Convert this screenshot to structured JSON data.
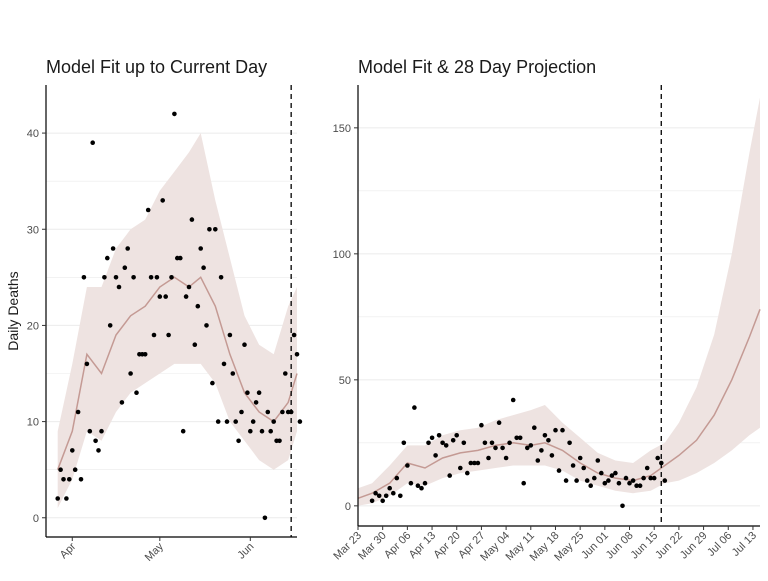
{
  "colors": {
    "ribbon": "#eee3e1",
    "line": "#c49a94",
    "points": "#000000",
    "gridline": "#ebebeb",
    "axis": "#000000",
    "cutoff": "#000000"
  },
  "chart_data": [
    {
      "type": "scatter",
      "title": "Model Fit up to Current Day",
      "ylabel": "Daily Deaths",
      "xlabel": "",
      "x_is_date": true,
      "xlim": [
        "2020-03-23",
        "2020-06-17"
      ],
      "ylim": [
        -2,
        45
      ],
      "yticks": [
        0,
        10,
        20,
        30,
        40
      ],
      "xticks": [
        {
          "date": "2020-04-01",
          "label": "Apr"
        },
        {
          "date": "2020-05-01",
          "label": "May"
        },
        {
          "date": "2020-06-01",
          "label": "Jun"
        }
      ],
      "cutoff_date": "2020-06-15",
      "observed": [
        [
          "2020-03-27",
          2
        ],
        [
          "2020-03-28",
          5
        ],
        [
          "2020-03-29",
          4
        ],
        [
          "2020-03-30",
          2
        ],
        [
          "2020-03-31",
          4
        ],
        [
          "2020-04-01",
          7
        ],
        [
          "2020-04-02",
          5
        ],
        [
          "2020-04-03",
          11
        ],
        [
          "2020-04-04",
          4
        ],
        [
          "2020-04-05",
          25
        ],
        [
          "2020-04-06",
          16
        ],
        [
          "2020-04-07",
          9
        ],
        [
          "2020-04-08",
          39
        ],
        [
          "2020-04-09",
          8
        ],
        [
          "2020-04-10",
          7
        ],
        [
          "2020-04-11",
          9
        ],
        [
          "2020-04-12",
          25
        ],
        [
          "2020-04-13",
          27
        ],
        [
          "2020-04-14",
          20
        ],
        [
          "2020-04-15",
          28
        ],
        [
          "2020-04-16",
          25
        ],
        [
          "2020-04-17",
          24
        ],
        [
          "2020-04-18",
          12
        ],
        [
          "2020-04-19",
          26
        ],
        [
          "2020-04-20",
          28
        ],
        [
          "2020-04-21",
          15
        ],
        [
          "2020-04-22",
          25
        ],
        [
          "2020-04-23",
          13
        ],
        [
          "2020-04-24",
          17
        ],
        [
          "2020-04-25",
          17
        ],
        [
          "2020-04-26",
          17
        ],
        [
          "2020-04-27",
          32
        ],
        [
          "2020-04-28",
          25
        ],
        [
          "2020-04-29",
          19
        ],
        [
          "2020-04-30",
          25
        ],
        [
          "2020-05-01",
          23
        ],
        [
          "2020-05-02",
          33
        ],
        [
          "2020-05-03",
          23
        ],
        [
          "2020-05-04",
          19
        ],
        [
          "2020-05-05",
          25
        ],
        [
          "2020-05-06",
          42
        ],
        [
          "2020-05-07",
          27
        ],
        [
          "2020-05-08",
          27
        ],
        [
          "2020-05-09",
          9
        ],
        [
          "2020-05-10",
          23
        ],
        [
          "2020-05-11",
          24
        ],
        [
          "2020-05-12",
          31
        ],
        [
          "2020-05-13",
          18
        ],
        [
          "2020-05-14",
          22
        ],
        [
          "2020-05-15",
          28
        ],
        [
          "2020-05-16",
          26
        ],
        [
          "2020-05-17",
          20
        ],
        [
          "2020-05-18",
          30
        ],
        [
          "2020-05-19",
          14
        ],
        [
          "2020-05-20",
          30
        ],
        [
          "2020-05-21",
          10
        ],
        [
          "2020-05-22",
          25
        ],
        [
          "2020-05-23",
          16
        ],
        [
          "2020-05-24",
          10
        ],
        [
          "2020-05-25",
          19
        ],
        [
          "2020-05-26",
          15
        ],
        [
          "2020-05-27",
          10
        ],
        [
          "2020-05-28",
          8
        ],
        [
          "2020-05-29",
          11
        ],
        [
          "2020-05-30",
          18
        ],
        [
          "2020-05-31",
          13
        ],
        [
          "2020-06-01",
          9
        ],
        [
          "2020-06-02",
          10
        ],
        [
          "2020-06-03",
          12
        ],
        [
          "2020-06-04",
          13
        ],
        [
          "2020-06-05",
          9
        ],
        [
          "2020-06-06",
          0
        ],
        [
          "2020-06-07",
          11
        ],
        [
          "2020-06-08",
          9
        ],
        [
          "2020-06-09",
          10
        ],
        [
          "2020-06-10",
          8
        ],
        [
          "2020-06-11",
          8
        ],
        [
          "2020-06-12",
          11
        ],
        [
          "2020-06-13",
          15
        ],
        [
          "2020-06-14",
          11
        ],
        [
          "2020-06-15",
          11
        ],
        [
          "2020-06-16",
          19
        ],
        [
          "2020-06-17",
          17
        ],
        [
          "2020-06-18",
          10
        ]
      ],
      "fit": [
        {
          "date": "2020-03-27",
          "mid": 5,
          "lo": 1,
          "hi": 9
        },
        {
          "date": "2020-04-01",
          "mid": 9,
          "lo": 4,
          "hi": 16
        },
        {
          "date": "2020-04-06",
          "mid": 17,
          "lo": 9,
          "hi": 24
        },
        {
          "date": "2020-04-11",
          "mid": 15,
          "lo": 8,
          "hi": 24
        },
        {
          "date": "2020-04-16",
          "mid": 19,
          "lo": 11,
          "hi": 28
        },
        {
          "date": "2020-04-21",
          "mid": 21,
          "lo": 13,
          "hi": 30
        },
        {
          "date": "2020-04-26",
          "mid": 22,
          "lo": 14,
          "hi": 31
        },
        {
          "date": "2020-05-01",
          "mid": 24,
          "lo": 15,
          "hi": 34
        },
        {
          "date": "2020-05-06",
          "mid": 25,
          "lo": 16,
          "hi": 36
        },
        {
          "date": "2020-05-11",
          "mid": 24,
          "lo": 16,
          "hi": 38
        },
        {
          "date": "2020-05-15",
          "mid": 25,
          "lo": 16,
          "hi": 40
        },
        {
          "date": "2020-05-20",
          "mid": 22,
          "lo": 14,
          "hi": 33
        },
        {
          "date": "2020-05-25",
          "mid": 17,
          "lo": 10,
          "hi": 27
        },
        {
          "date": "2020-05-30",
          "mid": 13,
          "lo": 8,
          "hi": 21
        },
        {
          "date": "2020-06-04",
          "mid": 11,
          "lo": 6,
          "hi": 18
        },
        {
          "date": "2020-06-09",
          "mid": 10,
          "lo": 5,
          "hi": 17
        },
        {
          "date": "2020-06-14",
          "mid": 12,
          "lo": 6,
          "hi": 22
        },
        {
          "date": "2020-06-17",
          "mid": 15,
          "lo": 9,
          "hi": 24
        }
      ]
    },
    {
      "type": "scatter",
      "title": "Model Fit & 28 Day Projection",
      "ylabel": "",
      "xlabel": "",
      "x_is_date": true,
      "xlim": [
        "2020-03-23",
        "2020-07-15"
      ],
      "ylim": [
        -8,
        167
      ],
      "yticks": [
        0,
        50,
        100,
        150
      ],
      "xticks": [
        {
          "date": "2020-03-23",
          "label": "Mar 23"
        },
        {
          "date": "2020-03-30",
          "label": "Mar 30"
        },
        {
          "date": "2020-04-06",
          "label": "Apr 06"
        },
        {
          "date": "2020-04-13",
          "label": "Apr 13"
        },
        {
          "date": "2020-04-20",
          "label": "Apr 20"
        },
        {
          "date": "2020-04-27",
          "label": "Apr 27"
        },
        {
          "date": "2020-05-04",
          "label": "May 04"
        },
        {
          "date": "2020-05-11",
          "label": "May 11"
        },
        {
          "date": "2020-05-18",
          "label": "May 18"
        },
        {
          "date": "2020-05-25",
          "label": "May 25"
        },
        {
          "date": "2020-06-01",
          "label": "Jun 01"
        },
        {
          "date": "2020-06-08",
          "label": "Jun 08"
        },
        {
          "date": "2020-06-15",
          "label": "Jun 15"
        },
        {
          "date": "2020-06-22",
          "label": "Jun 22"
        },
        {
          "date": "2020-06-29",
          "label": "Jun 29"
        },
        {
          "date": "2020-07-06",
          "label": "Jul 06"
        },
        {
          "date": "2020-07-13",
          "label": "Jul 13"
        }
      ],
      "cutoff_date": "2020-06-17",
      "observed_ref": 0,
      "fit": [
        {
          "date": "2020-03-23",
          "mid": 3,
          "lo": 0,
          "hi": 7
        },
        {
          "date": "2020-03-27",
          "mid": 5,
          "lo": 1,
          "hi": 9
        },
        {
          "date": "2020-04-01",
          "mid": 9,
          "lo": 4,
          "hi": 16
        },
        {
          "date": "2020-04-06",
          "mid": 17,
          "lo": 9,
          "hi": 24
        },
        {
          "date": "2020-04-11",
          "mid": 15,
          "lo": 8,
          "hi": 24
        },
        {
          "date": "2020-04-16",
          "mid": 19,
          "lo": 11,
          "hi": 28
        },
        {
          "date": "2020-04-21",
          "mid": 21,
          "lo": 13,
          "hi": 30
        },
        {
          "date": "2020-04-26",
          "mid": 22,
          "lo": 14,
          "hi": 31
        },
        {
          "date": "2020-05-01",
          "mid": 24,
          "lo": 15,
          "hi": 34
        },
        {
          "date": "2020-05-06",
          "mid": 25,
          "lo": 16,
          "hi": 36
        },
        {
          "date": "2020-05-11",
          "mid": 24,
          "lo": 16,
          "hi": 38
        },
        {
          "date": "2020-05-15",
          "mid": 25,
          "lo": 16,
          "hi": 40
        },
        {
          "date": "2020-05-20",
          "mid": 22,
          "lo": 14,
          "hi": 33
        },
        {
          "date": "2020-05-25",
          "mid": 17,
          "lo": 10,
          "hi": 27
        },
        {
          "date": "2020-05-30",
          "mid": 13,
          "lo": 8,
          "hi": 21
        },
        {
          "date": "2020-06-04",
          "mid": 11,
          "lo": 6,
          "hi": 18
        },
        {
          "date": "2020-06-09",
          "mid": 10,
          "lo": 5,
          "hi": 17
        },
        {
          "date": "2020-06-14",
          "mid": 12,
          "lo": 6,
          "hi": 22
        },
        {
          "date": "2020-06-18",
          "mid": 16,
          "lo": 9,
          "hi": 25
        },
        {
          "date": "2020-06-22",
          "mid": 20,
          "lo": 10,
          "hi": 33
        },
        {
          "date": "2020-06-27",
          "mid": 26,
          "lo": 13,
          "hi": 47
        },
        {
          "date": "2020-07-02",
          "mid": 36,
          "lo": 17,
          "hi": 68
        },
        {
          "date": "2020-07-07",
          "mid": 50,
          "lo": 22,
          "hi": 100
        },
        {
          "date": "2020-07-12",
          "mid": 67,
          "lo": 28,
          "hi": 140
        },
        {
          "date": "2020-07-15",
          "mid": 78,
          "lo": 31,
          "hi": 162
        }
      ]
    }
  ]
}
